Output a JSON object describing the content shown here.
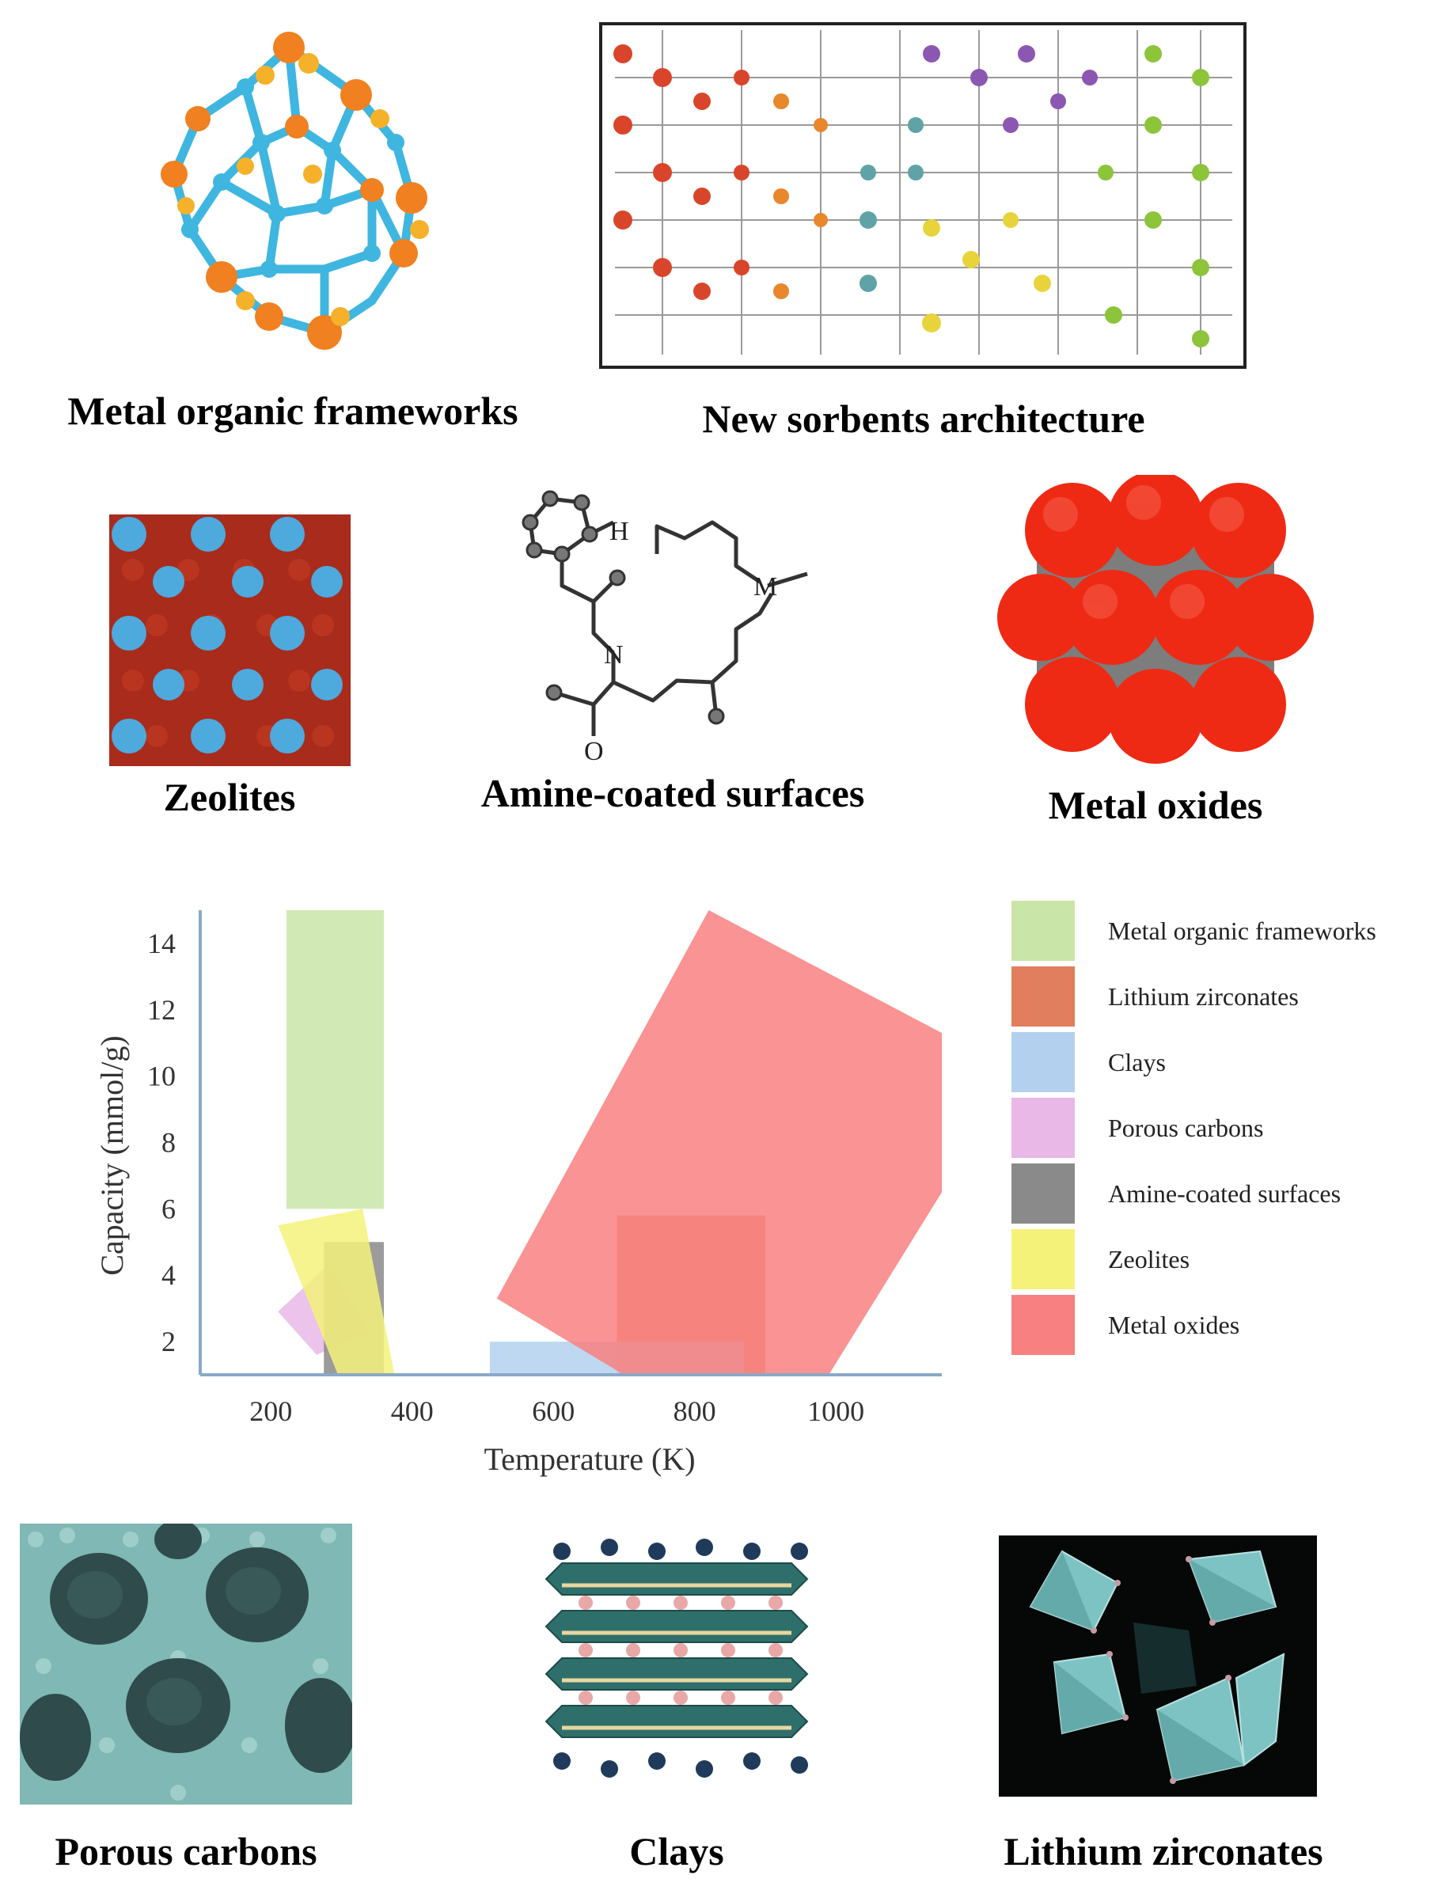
{
  "captions": {
    "mof": "Metal organic frameworks",
    "new_sorbents": "New sorbents architecture",
    "zeolites": "Zeolites",
    "amine": "Amine-coated surfaces",
    "metal_oxides": "Metal oxides",
    "porous_carbons": "Porous carbons",
    "clays": "Clays",
    "lithium_zirconates": "Lithium zirconates"
  },
  "molecule_labels": {
    "h": "H",
    "n": "N",
    "m": "M",
    "o": "O"
  },
  "chart_data": {
    "type": "area",
    "xlabel": "Temperature (K)",
    "ylabel": "Capacity (mmol/g)",
    "xlim": [
      100,
      1150
    ],
    "ylim": [
      1,
      15
    ],
    "x_ticks": [
      "200",
      "400",
      "600",
      "800",
      "1000"
    ],
    "x_tick_values": [
      200,
      400,
      600,
      800,
      1000
    ],
    "y_ticks": [
      "2",
      "4",
      "6",
      "8",
      "10",
      "12",
      "14"
    ],
    "y_tick_values": [
      2,
      4,
      6,
      8,
      10,
      12,
      14
    ],
    "legend_position": "right",
    "series": [
      {
        "name": "Metal organic frameworks",
        "color": "#c9e6a8",
        "polygon": [
          [
            222,
            15
          ],
          [
            360,
            15
          ],
          [
            360,
            6
          ],
          [
            222,
            6
          ]
        ]
      },
      {
        "name": "Lithium zirconates",
        "color": "#e07e5e",
        "polygon": [
          [
            690,
            5.8
          ],
          [
            900,
            5.8
          ],
          [
            900,
            1.0
          ],
          [
            690,
            1.0
          ]
        ]
      },
      {
        "name": "Clays",
        "color": "#b3d1ee",
        "polygon": [
          [
            510,
            2
          ],
          [
            870,
            2
          ],
          [
            870,
            1.0
          ],
          [
            510,
            1.0
          ]
        ]
      },
      {
        "name": "Porous carbons",
        "color": "#e9b8e6",
        "polygon": [
          [
            210,
            2.9
          ],
          [
            280,
            4.3
          ],
          [
            340,
            2.3
          ],
          [
            265,
            1.6
          ]
        ]
      },
      {
        "name": "Amine-coated surfaces",
        "color": "#8a8a8a",
        "polygon": [
          [
            275,
            5.0
          ],
          [
            360,
            5.0
          ],
          [
            360,
            1.0
          ],
          [
            275,
            1.0
          ]
        ]
      },
      {
        "name": "Zeolites",
        "color": "#f5f27a",
        "polygon": [
          [
            210,
            5.5
          ],
          [
            330,
            6.0
          ],
          [
            375,
            1.0
          ],
          [
            295,
            1.0
          ]
        ]
      },
      {
        "name": "Metal oxides",
        "color": "#f98080",
        "polygon": [
          [
            520,
            3.3
          ],
          [
            820,
            15
          ],
          [
            1150,
            11.3
          ],
          [
            1150,
            6.5
          ],
          [
            990,
            1.0
          ],
          [
            700,
            1.0
          ]
        ]
      }
    ]
  }
}
